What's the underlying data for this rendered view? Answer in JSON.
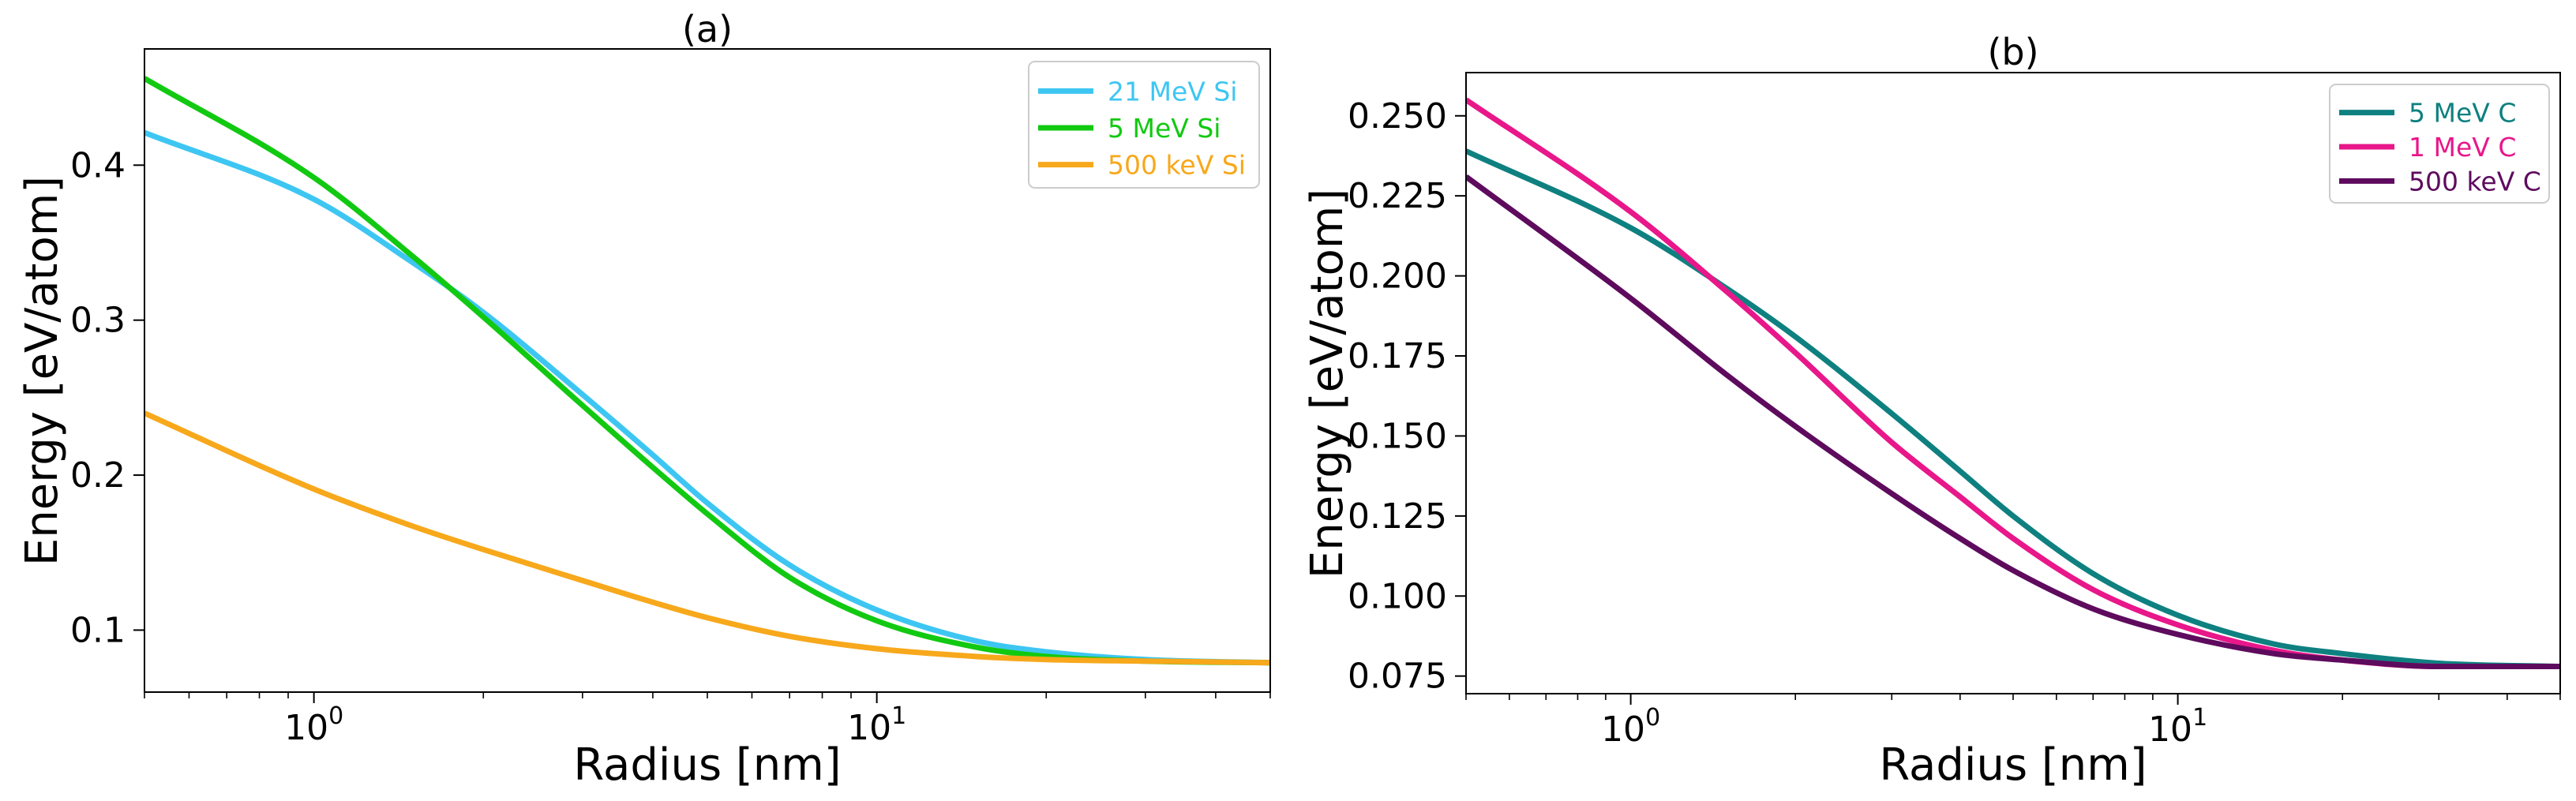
{
  "chart_data": [
    {
      "type": "line",
      "title": "(a)",
      "xlabel": "Radius [nm]",
      "ylabel": "Energy [eV/atom]",
      "xscale": "log",
      "xlim": [
        0.5,
        50
      ],
      "ylim": [
        0.06,
        0.475
      ],
      "yticks": [
        0.1,
        0.2,
        0.3,
        0.4
      ],
      "ytick_labels": [
        "0.1",
        "0.2",
        "0.3",
        "0.4"
      ],
      "xticks": [
        1,
        10
      ],
      "xtick_labels": [
        {
          "base": "10",
          "exp": "0"
        },
        {
          "base": "10",
          "exp": "1"
        }
      ],
      "legend_position": "upper right",
      "series": [
        {
          "name": "21 MeV Si",
          "color": "#3ec6f2",
          "x": [
            0.5,
            1,
            1.5,
            2,
            3,
            4,
            5,
            7,
            10,
            15,
            20,
            30,
            50
          ],
          "y": [
            0.421,
            0.378,
            0.337,
            0.305,
            0.252,
            0.213,
            0.182,
            0.142,
            0.113,
            0.093,
            0.086,
            0.081,
            0.079
          ]
        },
        {
          "name": "5 MeV Si",
          "color": "#12c912",
          "x": [
            0.5,
            1,
            1.5,
            2,
            3,
            4,
            5,
            7,
            10,
            15,
            20,
            30,
            50
          ],
          "y": [
            0.456,
            0.392,
            0.341,
            0.302,
            0.245,
            0.205,
            0.175,
            0.134,
            0.106,
            0.089,
            0.083,
            0.08,
            0.079
          ]
        },
        {
          "name": "500 keV Si",
          "color": "#f7a81b",
          "x": [
            0.5,
            1,
            1.5,
            2,
            3,
            4,
            5,
            7,
            10,
            15,
            20,
            30,
            50
          ],
          "y": [
            0.24,
            0.191,
            0.167,
            0.152,
            0.132,
            0.118,
            0.108,
            0.096,
            0.088,
            0.083,
            0.081,
            0.08,
            0.079
          ]
        }
      ]
    },
    {
      "type": "line",
      "title": "(b)",
      "xlabel": "Radius [nm]",
      "ylabel": "Energy [eV/atom]",
      "xscale": "log",
      "xlim": [
        0.5,
        50
      ],
      "ylim": [
        0.0695,
        0.2635
      ],
      "yticks": [
        0.075,
        0.1,
        0.125,
        0.15,
        0.175,
        0.2,
        0.225,
        0.25
      ],
      "ytick_labels": [
        "0.075",
        "0.100",
        "0.125",
        "0.150",
        "0.175",
        "0.200",
        "0.225",
        "0.250"
      ],
      "xticks": [
        1,
        10
      ],
      "xtick_labels": [
        {
          "base": "10",
          "exp": "0"
        },
        {
          "base": "10",
          "exp": "1"
        }
      ],
      "legend_position": "upper right",
      "series": [
        {
          "name": "5 MeV C",
          "color": "#0f8080",
          "x": [
            0.5,
            1,
            1.5,
            2,
            3,
            4,
            5,
            7,
            10,
            15,
            20,
            30,
            50
          ],
          "y": [
            0.239,
            0.215,
            0.196,
            0.181,
            0.157,
            0.139,
            0.125,
            0.107,
            0.094,
            0.085,
            0.082,
            0.079,
            0.078
          ]
        },
        {
          "name": "1 MeV C",
          "color": "#e8178a",
          "x": [
            0.5,
            1,
            1.5,
            2,
            3,
            4,
            5,
            7,
            10,
            15,
            20,
            30,
            50
          ],
          "y": [
            0.255,
            0.22,
            0.195,
            0.176,
            0.148,
            0.131,
            0.118,
            0.102,
            0.091,
            0.083,
            0.08,
            0.078,
            0.078
          ]
        },
        {
          "name": "500 keV C",
          "color": "#5e0b5e",
          "x": [
            0.5,
            1,
            1.5,
            2,
            3,
            4,
            5,
            7,
            10,
            15,
            20,
            30,
            50
          ],
          "y": [
            0.231,
            0.193,
            0.169,
            0.153,
            0.132,
            0.118,
            0.108,
            0.096,
            0.088,
            0.082,
            0.08,
            0.078,
            0.078
          ]
        }
      ]
    }
  ]
}
